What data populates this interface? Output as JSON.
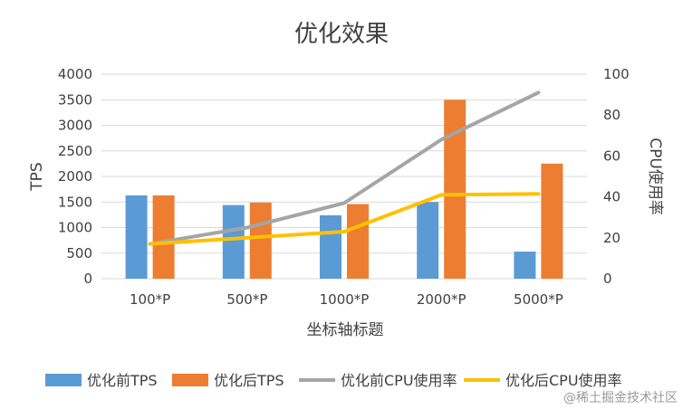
{
  "chart_data": {
    "type": "bar",
    "title": "优化效果",
    "categories": [
      "100*P",
      "500*P",
      "1000*P",
      "2000*P",
      "5000*P"
    ],
    "xlabel": "坐标轴标题",
    "ylabel": "TPS",
    "y2label": "CPU使用率",
    "ylim": [
      0,
      4000
    ],
    "yticks": [
      "0",
      "500",
      "1000",
      "1500",
      "2000",
      "2500",
      "3000",
      "3500",
      "4000"
    ],
    "y2lim": [
      0,
      100
    ],
    "y2ticks": [
      "0",
      "20",
      "40",
      "60",
      "80",
      "100"
    ],
    "grid": true,
    "legend_position": "bottom",
    "series": [
      {
        "name": "优化前TPS",
        "kind": "bar",
        "axis": "left",
        "color": "#5B9BD5",
        "values": [
          1630,
          1440,
          1240,
          1500,
          530
        ]
      },
      {
        "name": "优化后TPS",
        "kind": "bar",
        "axis": "left",
        "color": "#ED7D31",
        "values": [
          1630,
          1490,
          1460,
          3500,
          2250
        ]
      },
      {
        "name": "优化前CPU使用率",
        "kind": "line",
        "axis": "right",
        "color": "#A5A5A5",
        "values": [
          17,
          25,
          37,
          68,
          91
        ]
      },
      {
        "name": "优化后CPU使用率",
        "kind": "line",
        "axis": "right",
        "color": "#FFC000",
        "values": [
          17,
          20,
          23,
          41,
          41.5
        ]
      }
    ]
  },
  "watermark": "@稀土掘金技术社区"
}
